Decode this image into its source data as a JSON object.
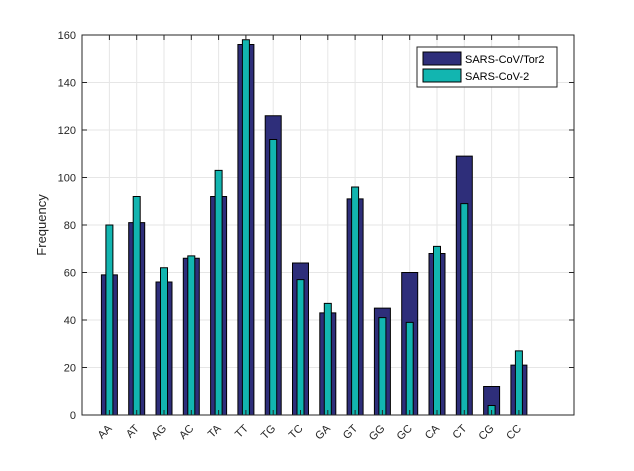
{
  "chart_data": {
    "type": "bar",
    "ylabel": "Frequency",
    "xlabel": "",
    "ylim": [
      0,
      160
    ],
    "yticks": [
      0,
      20,
      40,
      60,
      80,
      100,
      120,
      140,
      160
    ],
    "grid": true,
    "legend_position": "top-right",
    "categories": [
      "AA",
      "AT",
      "AG",
      "AC",
      "TA",
      "TT",
      "TG",
      "TC",
      "GA",
      "GT",
      "GG",
      "GC",
      "CA",
      "CT",
      "CG",
      "CC"
    ],
    "series": [
      {
        "name": "SARS-CoV/Tor2",
        "color": "#2e2e7a",
        "values": [
          59,
          81,
          56,
          66,
          92,
          156,
          126,
          64,
          43,
          91,
          45,
          60,
          68,
          109,
          12,
          21
        ]
      },
      {
        "name": "SARS-CoV-2",
        "color": "#12b5b0",
        "values": [
          80,
          92,
          62,
          67,
          103,
          158,
          116,
          57,
          47,
          96,
          41,
          39,
          71,
          89,
          4,
          27
        ]
      }
    ]
  }
}
